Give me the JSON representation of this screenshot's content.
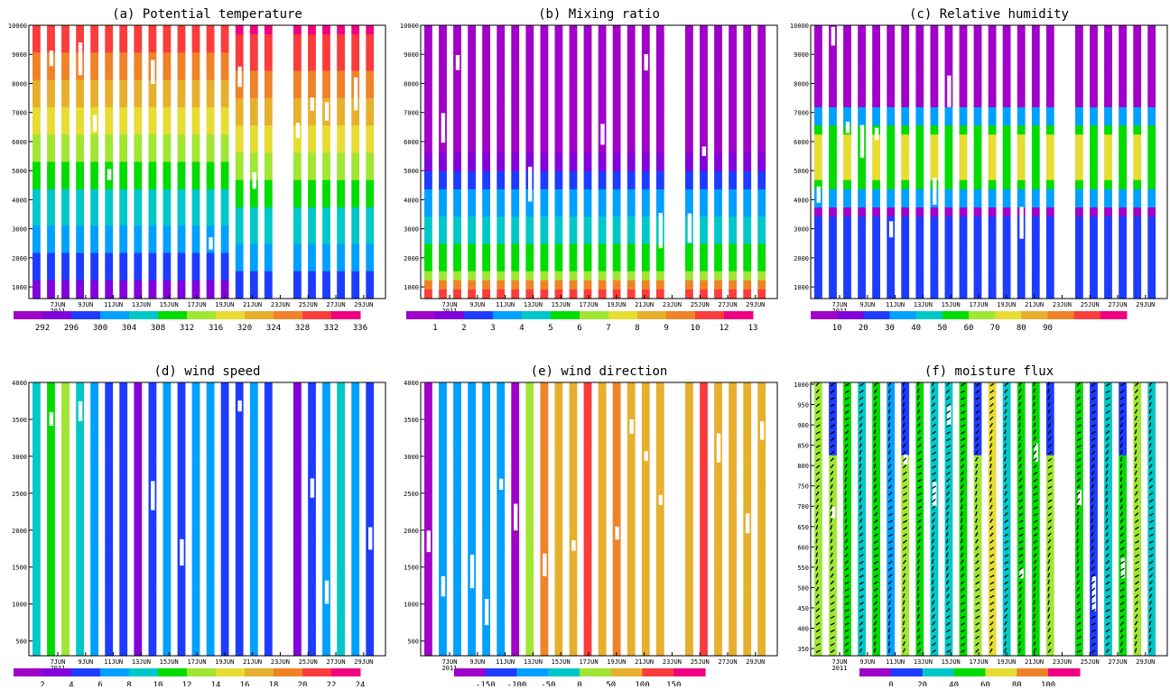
{
  "figure": {
    "panels": [
      {
        "id": "a",
        "title": "(a) Potential temperature",
        "yticks": [
          "10000",
          "9000",
          "8000",
          "7000",
          "6000",
          "5000",
          "4000",
          "3000",
          "2000",
          "1000"
        ],
        "xticks": [
          "7JUN",
          "9JUN",
          "11JUN",
          "13JUN",
          "15JUN",
          "17JUN",
          "19JUN",
          "21JUN",
          "23JUN",
          "25JUN",
          "27JUN",
          "29JUN"
        ],
        "year": "2011",
        "colorbar": {
          "colors": [
            "#a000c8",
            "#8200dc",
            "#1e3cff",
            "#00a0ff",
            "#00c8c8",
            "#00dc00",
            "#a0e632",
            "#e6dc32",
            "#e6af2d",
            "#f08228",
            "#fa3c3c",
            "#f00082"
          ],
          "labels": [
            "292",
            "296",
            "300",
            "304",
            "308",
            "312",
            "316",
            "320",
            "324",
            "328",
            "332",
            "336"
          ]
        }
      },
      {
        "id": "b",
        "title": "(b) Mixing ratio",
        "yticks": [
          "10000",
          "9000",
          "8000",
          "7000",
          "6000",
          "5000",
          "4000",
          "3000",
          "2000",
          "1000"
        ],
        "xticks": [
          "7JUN",
          "9JUN",
          "11JUN",
          "13JUN",
          "15JUN",
          "17JUN",
          "19JUN",
          "21JUN",
          "23JUN",
          "25JUN",
          "27JUN",
          "29JUN"
        ],
        "year": "2011",
        "colorbar": {
          "colors": [
            "#a000c8",
            "#8200dc",
            "#1e3cff",
            "#00a0ff",
            "#00c8c8",
            "#00dc00",
            "#a0e632",
            "#e6dc32",
            "#e6af2d",
            "#f08228",
            "#fa3c3c",
            "#f00082"
          ],
          "labels": [
            "1",
            "2",
            "3",
            "4",
            "5",
            "6",
            "7",
            "8",
            "9",
            "10",
            "12",
            "13"
          ]
        }
      },
      {
        "id": "c",
        "title": "(c) Relative humidity",
        "yticks": [
          "10000",
          "9000",
          "8000",
          "7000",
          "6000",
          "5000",
          "4000",
          "3000",
          "2000",
          "1000"
        ],
        "xticks": [
          "7JUN",
          "9JUN",
          "11JUN",
          "13JUN",
          "15JUN",
          "17JUN",
          "19JUN",
          "21JUN",
          "23JUN",
          "25JUN",
          "27JUN",
          "29JUN"
        ],
        "year": "2011",
        "colorbar": {
          "colors": [
            "#a000c8",
            "#8200dc",
            "#1e3cff",
            "#00a0ff",
            "#00c8c8",
            "#00dc00",
            "#a0e632",
            "#e6dc32",
            "#e6af2d",
            "#f08228",
            "#fa3c3c",
            "#f00082"
          ],
          "labels": [
            "10",
            "20",
            "30",
            "40",
            "50",
            "60",
            "70",
            "80",
            "90"
          ]
        }
      },
      {
        "id": "d",
        "title": "(d) wind speed",
        "yticks": [
          "4000",
          "3500",
          "3000",
          "2500",
          "2000",
          "1500",
          "1000",
          "500"
        ],
        "xticks": [
          "7JUN",
          "9JUN",
          "11JUN",
          "13JUN",
          "15JUN",
          "17JUN",
          "19JUN",
          "21JUN",
          "23JUN",
          "25JUN",
          "27JUN",
          "29JUN"
        ],
        "year": "2011",
        "colorbar": {
          "colors": [
            "#a000c8",
            "#8200dc",
            "#1e3cff",
            "#00a0ff",
            "#00c8c8",
            "#00dc00",
            "#a0e632",
            "#e6dc32",
            "#e6af2d",
            "#f08228",
            "#fa3c3c",
            "#f00082"
          ],
          "labels": [
            "2",
            "4",
            "6",
            "8",
            "10",
            "12",
            "14",
            "16",
            "18",
            "20",
            "22",
            "24"
          ]
        }
      },
      {
        "id": "e",
        "title": "(e) wind direction",
        "yticks": [
          "4000",
          "3500",
          "3000",
          "2500",
          "2000",
          "1500",
          "1000",
          "500"
        ],
        "xticks": [
          "7JUN",
          "9JUN",
          "11JUN",
          "13JUN",
          "15JUN",
          "17JUN",
          "19JUN",
          "21JUN",
          "23JUN",
          "25JUN",
          "27JUN",
          "29JUN"
        ],
        "year": "2011",
        "colorbar": {
          "colors": [
            "#a000c8",
            "#1e3cff",
            "#00a0ff",
            "#00c8c8",
            "#a0e632",
            "#e6af2d",
            "#fa3c3c",
            "#f00082"
          ],
          "labels": [
            "-150",
            "-100",
            "-50",
            "0",
            "50",
            "100",
            "150"
          ]
        }
      },
      {
        "id": "f",
        "title": "(f) moisture flux",
        "yticks": [
          "1000",
          "950",
          "900",
          "850",
          "800",
          "750",
          "700",
          "650",
          "600",
          "550",
          "500",
          "450",
          "400",
          "350"
        ],
        "xticks": [
          "7JUN",
          "9JUN",
          "11JUN",
          "13JUN",
          "15JUN",
          "17JUN",
          "19JUN",
          "21JUN",
          "23JUN",
          "25JUN",
          "27JUN",
          "29JUN"
        ],
        "year": "2011",
        "colorbar": {
          "colors": [
            "#a000c8",
            "#1e3cff",
            "#00c8c8",
            "#00dc00",
            "#e6dc32",
            "#f08228",
            "#f00082"
          ],
          "labels": [
            "0",
            "20",
            "40",
            "60",
            "80",
            "100"
          ]
        }
      }
    ]
  },
  "chart_data": [
    {
      "type": "heatmap",
      "title": "(a) Potential temperature",
      "xlabel": "",
      "ylabel": "",
      "x_range": [
        "6JUN 2011",
        "30JUN 2011"
      ],
      "ylim": [
        300,
        10000
      ],
      "z_levels": [
        292,
        296,
        300,
        304,
        308,
        312,
        316,
        320,
        324,
        328,
        332,
        336
      ],
      "legend": "bottom"
    },
    {
      "type": "heatmap",
      "title": "(b) Mixing ratio",
      "xlabel": "",
      "ylabel": "",
      "x_range": [
        "6JUN 2011",
        "30JUN 2011"
      ],
      "ylim": [
        300,
        10000
      ],
      "z_levels": [
        1,
        2,
        3,
        4,
        5,
        6,
        7,
        8,
        9,
        10,
        12,
        13
      ],
      "legend": "bottom"
    },
    {
      "type": "heatmap",
      "title": "(c) Relative humidity",
      "xlabel": "",
      "ylabel": "",
      "x_range": [
        "6JUN 2011",
        "30JUN 2011"
      ],
      "ylim": [
        300,
        10000
      ],
      "z_levels": [
        10,
        20,
        30,
        40,
        50,
        60,
        70,
        80,
        90
      ],
      "legend": "bottom"
    },
    {
      "type": "heatmap",
      "title": "(d) wind speed",
      "xlabel": "",
      "ylabel": "",
      "x_range": [
        "6JUN 2011",
        "30JUN 2011"
      ],
      "ylim": [
        350,
        4000
      ],
      "z_levels": [
        2,
        4,
        6,
        8,
        10,
        12,
        14,
        16,
        18,
        20,
        22,
        24
      ],
      "legend": "bottom"
    },
    {
      "type": "heatmap",
      "title": "(e) wind direction",
      "xlabel": "",
      "ylabel": "",
      "x_range": [
        "6JUN 2011",
        "30JUN 2011"
      ],
      "ylim": [
        350,
        4000
      ],
      "z_levels": [
        -150,
        -100,
        -50,
        0,
        50,
        100,
        150
      ],
      "legend": "bottom"
    },
    {
      "type": "heatmap",
      "title": "(f) moisture flux",
      "xlabel": "",
      "ylabel": "",
      "x_range": [
        "6JUN 2011",
        "30JUN 2011"
      ],
      "ylim": [
        350,
        1000
      ],
      "z_levels": [
        0,
        20,
        40,
        60,
        80,
        100
      ],
      "vectors": true,
      "legend": "bottom"
    }
  ]
}
